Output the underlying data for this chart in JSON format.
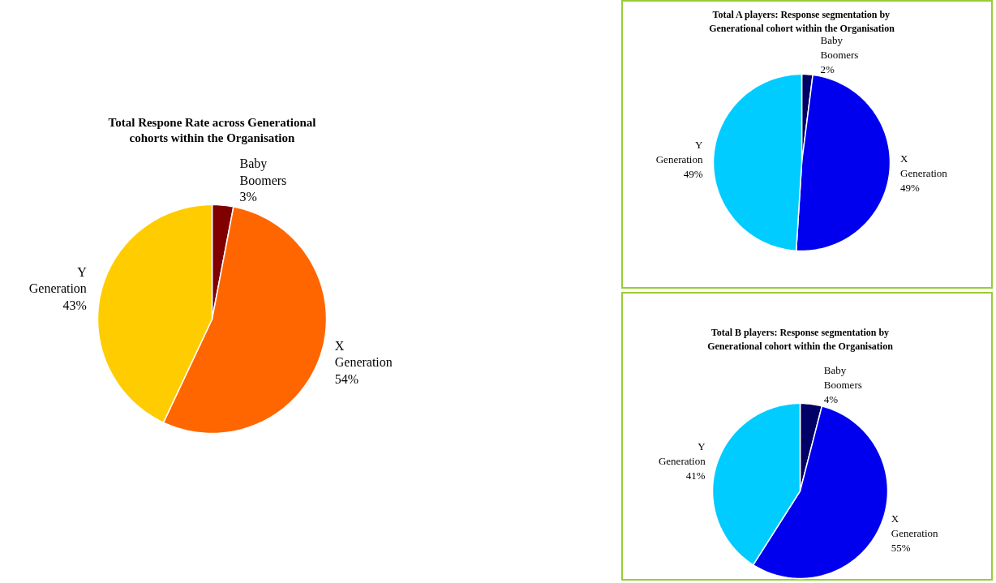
{
  "chart_data": [
    {
      "type": "pie",
      "title": "Total Respone Rate across Generational cohorts within the Organisation",
      "categories": [
        "Baby Boomers",
        "X Generation",
        "Y Generation"
      ],
      "values": [
        3,
        54,
        43
      ],
      "value_labels": [
        "3%",
        "54%",
        "43%"
      ],
      "colors": [
        "#800000",
        "#ff6600",
        "#ffcc00"
      ]
    },
    {
      "type": "pie",
      "title": "Total A players: Response segmentation by Generational cohort within the Organisation",
      "categories": [
        "Baby Boomers",
        "X Generation",
        "Y Generation"
      ],
      "values": [
        2,
        49,
        49
      ],
      "value_labels": [
        "2%",
        "49%",
        "49%"
      ],
      "colors": [
        "#000066",
        "#0000ee",
        "#00ccff"
      ]
    },
    {
      "type": "pie",
      "title": "Total B players: Response segmentation by Generational cohort within the Organisation",
      "categories": [
        "Baby Boomers",
        "X Generation",
        "Y Generation"
      ],
      "values": [
        4,
        55,
        41
      ],
      "value_labels": [
        "4%",
        "55%",
        "41%"
      ],
      "colors": [
        "#000066",
        "#0000ee",
        "#00ccff"
      ]
    }
  ]
}
